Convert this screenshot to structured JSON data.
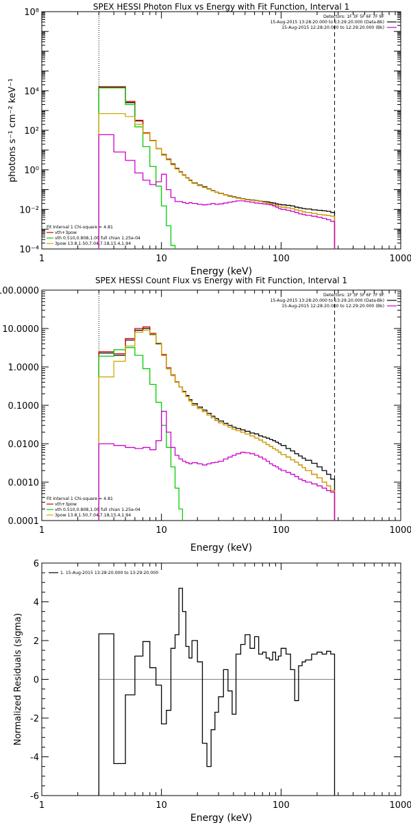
{
  "chart_data": [
    {
      "type": "line",
      "style": "step",
      "title": "SPEX HESSI Photon Flux vs Energy with Fit Function, Interval 1",
      "xlabel": "Energy (keV)",
      "ylabel": "photons s⁻¹ cm⁻² keV⁻¹",
      "xscale": "log",
      "yscale": "log",
      "xlim": [
        1,
        1000
      ],
      "ylim": [
        0.0001,
        100000000
      ],
      "xticks": [
        1,
        10,
        100,
        1000
      ],
      "xtick_labels": [
        "1",
        "10",
        "100",
        "1000"
      ],
      "yticks": [
        0.0001,
        0.01,
        1,
        100,
        10000,
        100000000
      ],
      "ytick_labels": [
        "10⁻⁴",
        "10⁻²",
        "10⁰",
        "10²",
        "10⁴",
        "10⁸"
      ],
      "vlines": [
        {
          "x": 3,
          "style": "dotted"
        },
        {
          "x": 280,
          "style": "dashed"
        }
      ],
      "legend_top_right": [
        {
          "text": "Detectors: 1F 3F 5F 6F 7F 9F",
          "color": "#000000"
        },
        {
          "text": "15-Aug-2015 13:28:20.000 to 13:29:20.000 (Data-Bk)",
          "color": "#000000"
        },
        {
          "text": "15-Aug-2015 12:28:20.000 to 12:29:20.000 (Bk)",
          "color": "#cc00cc"
        }
      ],
      "legend_bottom_left": [
        {
          "text": "Fit Interval 1    Chi-square = 4.81",
          "color": "#000000"
        },
        {
          "text": "vth+3pow",
          "color": "#cc0000"
        },
        {
          "text": "vth 0.510,0.808,1.00  full chian 1.25e-04",
          "color": "#00cc00"
        },
        {
          "text": "3pow 13.8,1.50,7.04,7.18,15.4,1.94",
          "color": "#ccaa00"
        }
      ],
      "edges": [
        3,
        4,
        5,
        6,
        7,
        8,
        9,
        10,
        11,
        12,
        13,
        14,
        15,
        16,
        17,
        18,
        20,
        22,
        24,
        26,
        28,
        30,
        33,
        36,
        39,
        42,
        46,
        50,
        55,
        60,
        65,
        70,
        75,
        80,
        85,
        90,
        95,
        100,
        110,
        120,
        130,
        140,
        150,
        160,
        180,
        200,
        220,
        240,
        260,
        280
      ],
      "series": [
        {
          "color": "#000000",
          "values": [
            15000,
            15000,
            2500,
            300,
            70,
            30,
            12,
            6,
            3.5,
            2.0,
            1.2,
            0.8,
            0.55,
            0.4,
            0.3,
            0.22,
            0.17,
            0.14,
            0.11,
            0.09,
            0.075,
            0.065,
            0.055,
            0.048,
            0.043,
            0.039,
            0.035,
            0.032,
            0.03,
            0.028,
            0.026,
            0.025,
            0.024,
            0.022,
            0.021,
            0.019,
            0.018,
            0.017,
            0.016,
            0.015,
            0.013,
            0.012,
            0.011,
            0.0105,
            0.0095,
            0.009,
            0.0085,
            0.008,
            0.007
          ]
        },
        {
          "color": "#cc0000",
          "values": [
            16000,
            16000,
            2900,
            320,
            75,
            31,
            12,
            5.8,
            3.4,
            1.9,
            1.15,
            0.78,
            0.54,
            0.39,
            0.29,
            0.21,
            0.16,
            0.13,
            0.105,
            0.087,
            0.073,
            0.063,
            0.053,
            0.046,
            0.041,
            0.037,
            0.034,
            0.031,
            0.029,
            0.027,
            0.025,
            0.023,
            0.021,
            0.019,
            0.017,
            0.016,
            0.014,
            0.013,
            0.012,
            0.011,
            0.0095,
            0.0085,
            0.0075,
            0.007,
            0.0062,
            0.0056,
            0.0052,
            0.0049,
            0.0045
          ]
        },
        {
          "color": "#00cc00",
          "values": [
            14000,
            14000,
            2000,
            150,
            15,
            1.5,
            0.15,
            0.015,
            0.0015,
            0.00015
          ]
        },
        {
          "color": "#ccaa00",
          "values": [
            700,
            700,
            500,
            200,
            70,
            30,
            12,
            5.5,
            3.2,
            1.8,
            1.1,
            0.75,
            0.52,
            0.38,
            0.28,
            0.21,
            0.16,
            0.13,
            0.105,
            0.087,
            0.073,
            0.063,
            0.053,
            0.046,
            0.041,
            0.037,
            0.034,
            0.031,
            0.029,
            0.027,
            0.025,
            0.023,
            0.021,
            0.019,
            0.017,
            0.016,
            0.014,
            0.013,
            0.012,
            0.011,
            0.0095,
            0.0085,
            0.0075,
            0.007,
            0.0062,
            0.0056,
            0.0052,
            0.0049,
            0.0045
          ]
        },
        {
          "color": "#cc00cc",
          "values": [
            60,
            8,
            3,
            0.7,
            0.3,
            0.18,
            0.25,
            0.6,
            0.1,
            0.04,
            0.025,
            0.025,
            0.022,
            0.02,
            0.022,
            0.02,
            0.018,
            0.017,
            0.018,
            0.02,
            0.018,
            0.019,
            0.021,
            0.023,
            0.025,
            0.027,
            0.027,
            0.025,
            0.023,
            0.021,
            0.02,
            0.019,
            0.018,
            0.017,
            0.015,
            0.013,
            0.011,
            0.01,
            0.009,
            0.008,
            0.007,
            0.006,
            0.0055,
            0.005,
            0.0045,
            0.004,
            0.0035,
            0.003,
            0.0025
          ]
        }
      ]
    },
    {
      "type": "line",
      "style": "step",
      "title": "SPEX HESSI Count Flux vs Energy with Fit Function, Interval 1",
      "xlabel": "Energy (keV)",
      "ylabel": "",
      "xscale": "log",
      "yscale": "log",
      "xlim": [
        1,
        1000
      ],
      "ylim": [
        0.0001,
        100
      ],
      "xticks": [
        1,
        10,
        100,
        1000
      ],
      "xtick_labels": [
        "1",
        "10",
        "100",
        "1000"
      ],
      "yticks": [
        0.0001,
        0.001,
        0.01,
        0.1,
        1,
        10,
        100
      ],
      "ytick_labels": [
        "0.0001",
        "0.0010",
        "0.0100",
        "0.1000",
        "1.0000",
        "10.0000",
        "100.0000"
      ],
      "vlines": [
        {
          "x": 3,
          "style": "dotted"
        },
        {
          "x": 280,
          "style": "dashed"
        }
      ],
      "legend_top_right": [
        {
          "text": "Detectors: 1F 3F 5F 6F 7F 9F",
          "color": "#000000"
        },
        {
          "text": "15-Aug-2015 13:28:20.000 to 13:29:20.000 (Data-Bk)",
          "color": "#000000"
        },
        {
          "text": "15-Aug-2015 12:28:20.000 to 12:29:20.000 (Bk)",
          "color": "#cc00cc"
        }
      ],
      "legend_bottom_left": [
        {
          "text": "Fit Interval 1    Chi-square = 4.81",
          "color": "#000000"
        },
        {
          "text": "vth+3pow",
          "color": "#cc0000"
        },
        {
          "text": "vth 0.510,0.808,1.00  full chian 1.25e-04",
          "color": "#00cc00"
        },
        {
          "text": "3pow 13.8,1.50,7.04,7.18,15.4,1.94",
          "color": "#ccaa00"
        }
      ],
      "edges": [
        3,
        4,
        5,
        6,
        7,
        8,
        9,
        10,
        11,
        12,
        13,
        14,
        15,
        16,
        17,
        18,
        20,
        22,
        24,
        26,
        28,
        30,
        33,
        36,
        39,
        42,
        46,
        50,
        55,
        60,
        65,
        70,
        75,
        80,
        85,
        90,
        95,
        100,
        110,
        120,
        130,
        140,
        150,
        160,
        180,
        200,
        220,
        240,
        260,
        280
      ],
      "series": [
        {
          "color": "#000000",
          "values": [
            2.3,
            2.0,
            5.0,
            9.0,
            10.0,
            7.0,
            4.0,
            2.0,
            0.9,
            0.6,
            0.4,
            0.3,
            0.23,
            0.18,
            0.14,
            0.11,
            0.09,
            0.075,
            0.062,
            0.052,
            0.045,
            0.039,
            0.034,
            0.03,
            0.027,
            0.025,
            0.023,
            0.021,
            0.019,
            0.018,
            0.016,
            0.015,
            0.014,
            0.013,
            0.012,
            0.011,
            0.01,
            0.009,
            0.0075,
            0.0065,
            0.0055,
            0.0048,
            0.0042,
            0.0037,
            0.0031,
            0.0025,
            0.002,
            0.0016,
            0.0012
          ]
        },
        {
          "color": "#cc0000",
          "values": [
            2.5,
            2.2,
            5.5,
            10.0,
            11.0,
            7.5,
            4.2,
            2.1,
            0.95,
            0.62,
            0.41,
            0.3,
            0.22,
            0.17,
            0.13,
            0.1,
            0.082,
            0.068,
            0.056,
            0.047,
            0.04,
            0.035,
            0.031,
            0.027,
            0.024,
            0.022,
            0.02,
            0.018,
            0.016,
            0.014,
            0.0125,
            0.011,
            0.0095,
            0.0085,
            0.0075,
            0.0068,
            0.006,
            0.0052,
            0.0045,
            0.0038,
            0.0033,
            0.0028,
            0.0024,
            0.002,
            0.0016,
            0.0013,
            0.001,
            0.0008,
            0.0006
          ]
        },
        {
          "color": "#00cc00",
          "values": [
            1.9,
            2.8,
            3.2,
            2.0,
            0.9,
            0.35,
            0.12,
            0.03,
            0.008,
            0.0025,
            0.0007,
            0.0002
          ]
        },
        {
          "color": "#ccaa00",
          "values": [
            0.55,
            1.4,
            3.5,
            8.0,
            9.0,
            7.2,
            4.2,
            2.0,
            0.9,
            0.6,
            0.4,
            0.3,
            0.22,
            0.17,
            0.13,
            0.1,
            0.082,
            0.068,
            0.056,
            0.047,
            0.04,
            0.035,
            0.031,
            0.027,
            0.024,
            0.022,
            0.02,
            0.018,
            0.016,
            0.014,
            0.0125,
            0.011,
            0.0095,
            0.0085,
            0.0075,
            0.0068,
            0.006,
            0.0052,
            0.0045,
            0.0038,
            0.0033,
            0.0028,
            0.0024,
            0.002,
            0.0016,
            0.0013,
            0.001,
            0.0008,
            0.0006
          ]
        },
        {
          "color": "#cc00cc",
          "values": [
            0.01,
            0.009,
            0.008,
            0.0075,
            0.008,
            0.007,
            0.012,
            0.07,
            0.02,
            0.008,
            0.005,
            0.004,
            0.0035,
            0.0032,
            0.003,
            0.0032,
            0.003,
            0.0028,
            0.003,
            0.0032,
            0.0033,
            0.0035,
            0.004,
            0.0045,
            0.005,
            0.0055,
            0.006,
            0.0058,
            0.0055,
            0.005,
            0.0045,
            0.004,
            0.0035,
            0.003,
            0.0027,
            0.0025,
            0.0022,
            0.002,
            0.0018,
            0.0016,
            0.0014,
            0.0012,
            0.0011,
            0.001,
            0.0009,
            0.0008,
            0.0007,
            0.0006,
            0.00055
          ]
        }
      ]
    },
    {
      "type": "line",
      "style": "step",
      "title": "",
      "xlabel": "Energy (keV)",
      "ylabel": "Normalized Residuals (sigma)",
      "xscale": "log",
      "yscale": "linear",
      "xlim": [
        1,
        1000
      ],
      "ylim": [
        -6,
        6
      ],
      "xticks": [
        1,
        10,
        100,
        1000
      ],
      "xtick_labels": [
        "1",
        "10",
        "100",
        "1000"
      ],
      "yticks": [
        -6,
        -4,
        -2,
        0,
        2,
        4,
        6
      ],
      "ytick_labels": [
        "-6",
        "-4",
        "-2",
        "0",
        "2",
        "4",
        "6"
      ],
      "hlines": [
        {
          "y": 0,
          "style": "solid",
          "x_from": 3,
          "x_to": 280
        }
      ],
      "legend_top_left": [
        {
          "text": "1. 15-Aug-2015 13:28:20.000 to 13:29:20.000",
          "color": "#000000"
        }
      ],
      "edges": [
        3,
        4,
        5,
        6,
        7,
        8,
        9,
        10,
        11,
        12,
        13,
        14,
        15,
        16,
        17,
        18,
        20,
        22,
        24,
        26,
        28,
        30,
        33,
        36,
        39,
        42,
        46,
        50,
        55,
        60,
        65,
        70,
        75,
        80,
        85,
        90,
        95,
        100,
        110,
        120,
        130,
        140,
        150,
        160,
        180,
        200,
        220,
        240,
        260,
        280
      ],
      "series": [
        {
          "color": "#000000",
          "values": [
            2.35,
            -4.35,
            -0.8,
            1.2,
            1.95,
            0.6,
            -0.3,
            -2.3,
            -1.6,
            1.6,
            2.3,
            4.7,
            3.5,
            1.7,
            1.1,
            2.0,
            0.9,
            -3.3,
            -4.5,
            -2.6,
            -1.7,
            -0.9,
            0.5,
            -0.6,
            -1.8,
            1.3,
            1.8,
            2.3,
            1.6,
            2.2,
            1.3,
            1.4,
            1.1,
            1.0,
            1.4,
            1.0,
            1.2,
            1.6,
            1.3,
            0.5,
            -1.1,
            0.7,
            0.9,
            1.0,
            1.3,
            1.4,
            1.3,
            1.45,
            1.3
          ]
        }
      ]
    }
  ]
}
